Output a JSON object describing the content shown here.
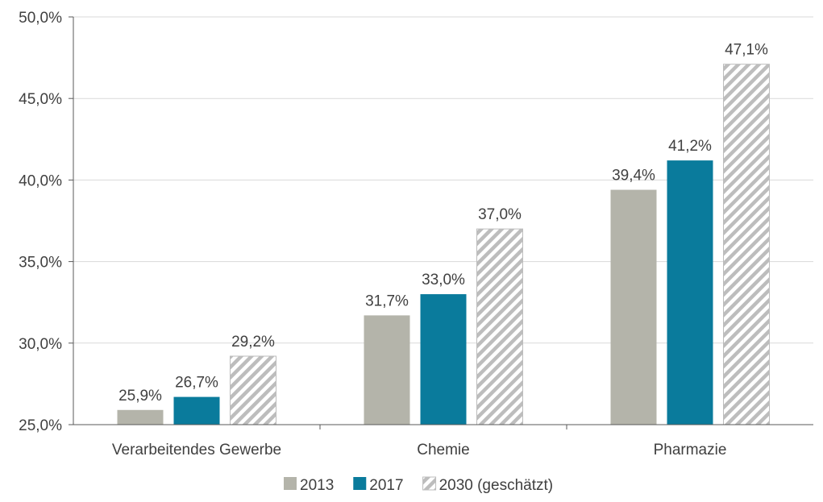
{
  "chart_data": {
    "type": "bar",
    "categories": [
      "Verarbeitendes Gewerbe",
      "Chemie",
      "Pharmazie"
    ],
    "series": [
      {
        "name": "2013",
        "values": [
          25.9,
          31.7,
          39.4
        ],
        "labels": [
          "25,9%",
          "31,7%",
          "39,4%"
        ],
        "color": "#b4b4aa",
        "pattern": false
      },
      {
        "name": "2017",
        "values": [
          26.7,
          33.0,
          41.2
        ],
        "labels": [
          "26,7%",
          "33,0%",
          "41,2%"
        ],
        "color": "#0a7b9c",
        "pattern": false
      },
      {
        "name": "2030 (geschätzt)",
        "values": [
          29.2,
          37.0,
          47.1
        ],
        "labels": [
          "29,2%",
          "37,0%",
          "47,1%"
        ],
        "color": "#bdbdbd",
        "pattern": true
      }
    ],
    "ylim": [
      25,
      50
    ],
    "yticks": [
      25,
      30,
      35,
      40,
      45,
      50
    ],
    "ytick_labels": [
      "25,0%",
      "30,0%",
      "35,0%",
      "40,0%",
      "45,0%",
      "50,0%"
    ],
    "grid": true,
    "legend_position": "bottom-center",
    "title": "",
    "xlabel": "",
    "ylabel": ""
  }
}
